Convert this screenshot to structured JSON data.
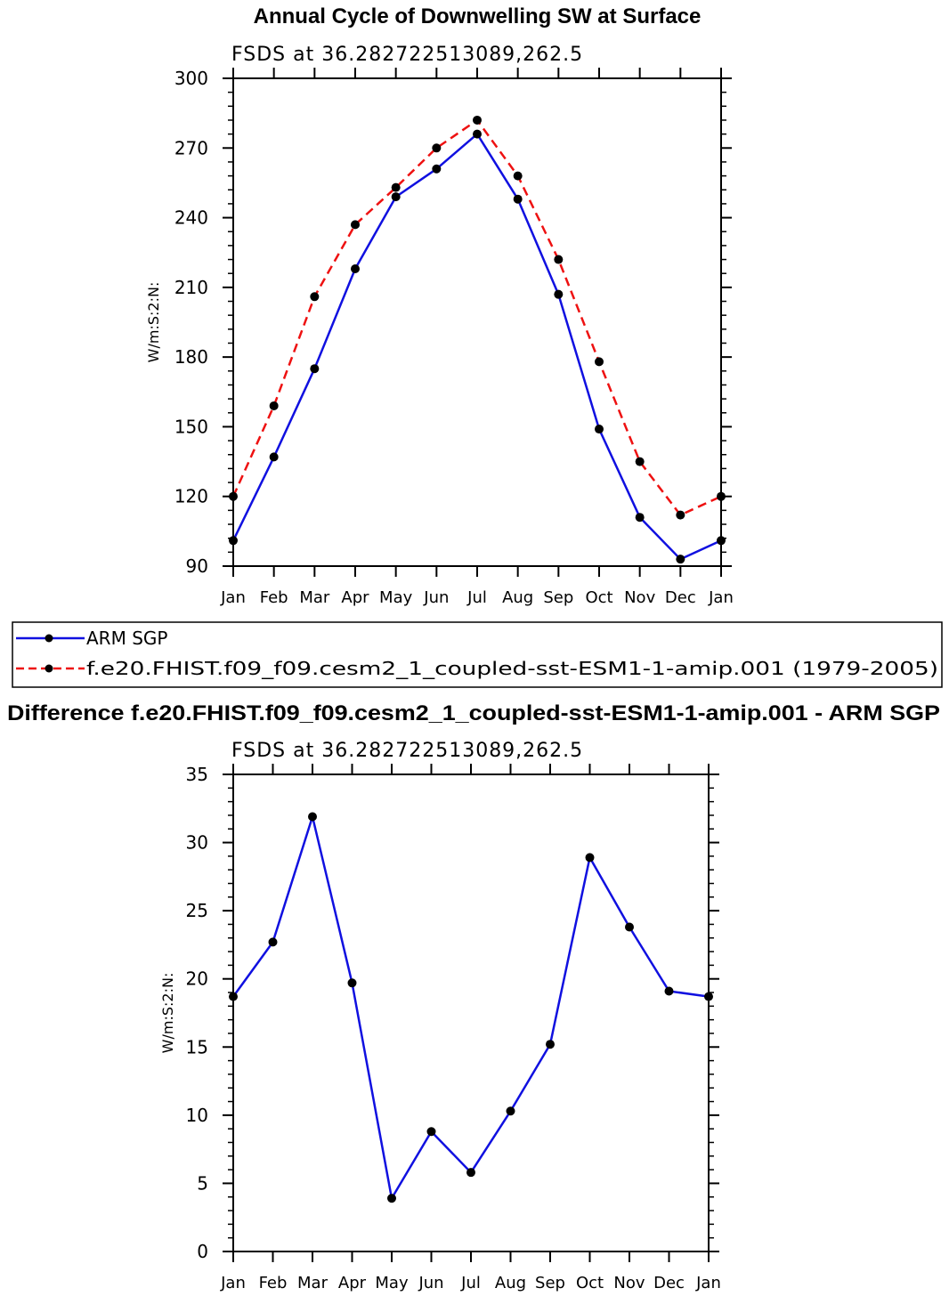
{
  "colors": {
    "obs": "#1010e0",
    "model": "#ee1111",
    "marker": "#000000"
  },
  "legend": {
    "obs_label": "ARM SGP",
    "model_label": "f.e20.FHIST.f09_f09.cesm2_1_coupled-sst-ESM1-1-amip.001 (1979-2005)"
  },
  "chart_data": [
    {
      "type": "line",
      "title": "Annual Cycle of Downwelling SW at Surface",
      "subtitle": "FSDS at 36.282722513089,262.5",
      "xlabel": "",
      "ylabel": "W/m:S:2:N:",
      "ylim": [
        90,
        300
      ],
      "yticks": [
        90,
        120,
        150,
        180,
        210,
        240,
        270,
        300
      ],
      "categories": [
        "Jan",
        "Feb",
        "Mar",
        "Apr",
        "May",
        "Jun",
        "Jul",
        "Aug",
        "Sep",
        "Oct",
        "Nov",
        "Dec",
        "Jan"
      ],
      "series": [
        {
          "name": "ARM SGP",
          "style": "solid",
          "values": [
            101,
            137,
            175,
            218,
            249,
            261,
            276,
            248,
            207,
            149,
            111,
            93,
            101
          ]
        },
        {
          "name": "f.e20.FHIST.f09_f09.cesm2_1_coupled-sst-ESM1-1-amip.001 (1979-2005)",
          "style": "dashed",
          "values": [
            120,
            159,
            206,
            237,
            253,
            270,
            282,
            258,
            222,
            178,
            135,
            112,
            120
          ]
        }
      ]
    },
    {
      "type": "line",
      "title": "Difference f.e20.FHIST.f09_f09.cesm2_1_coupled-sst-ESM1-1-amip.001 - ARM SGP",
      "subtitle": "FSDS at 36.282722513089,262.5",
      "xlabel": "",
      "ylabel": "W/m:S:2:N:",
      "ylim": [
        0,
        35
      ],
      "yticks": [
        0,
        5,
        10,
        15,
        20,
        25,
        30,
        35
      ],
      "categories": [
        "Jan",
        "Feb",
        "Mar",
        "Apr",
        "May",
        "Jun",
        "Jul",
        "Aug",
        "Sep",
        "Oct",
        "Nov",
        "Dec",
        "Jan"
      ],
      "series": [
        {
          "name": "Difference",
          "style": "solid",
          "values": [
            18.7,
            22.7,
            31.9,
            19.7,
            3.9,
            8.8,
            5.8,
            10.3,
            15.2,
            28.9,
            23.8,
            19.1,
            18.7
          ]
        }
      ]
    }
  ]
}
